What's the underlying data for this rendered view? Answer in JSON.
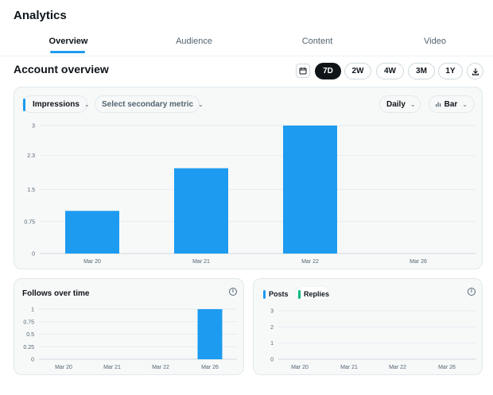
{
  "page": {
    "title": "Analytics"
  },
  "tabs": [
    {
      "label": "Overview",
      "active": true
    },
    {
      "label": "Audience",
      "active": false
    },
    {
      "label": "Content",
      "active": false
    },
    {
      "label": "Video",
      "active": false
    }
  ],
  "overview": {
    "title": "Account overview",
    "calendar_icon": "calendar-icon",
    "ranges": [
      {
        "label": "7D",
        "active": true
      },
      {
        "label": "2W",
        "active": false
      },
      {
        "label": "4W",
        "active": false
      },
      {
        "label": "3M",
        "active": false
      },
      {
        "label": "1Y",
        "active": false
      }
    ],
    "download_icon": "download-icon",
    "accent_color": "#1d9bf0"
  },
  "main_chart": {
    "primary_metric": "Impressions",
    "secondary_metric": "Select secondary metric",
    "interval": "Daily",
    "chart_style": "Bar"
  },
  "follows": {
    "title": "Follows over time"
  },
  "posts": {
    "legend": [
      {
        "name": "Posts",
        "color": "#1d9bf0"
      },
      {
        "name": "Replies",
        "color": "#00ba7c"
      }
    ]
  },
  "chart_data": [
    {
      "type": "bar",
      "categories": [
        "Mar 20",
        "Mar 21",
        "Mar 22",
        "Mar 26"
      ],
      "values": [
        1,
        2,
        3,
        null
      ],
      "yticks": [
        "0",
        "0.75",
        "1.5",
        "2.3",
        "3"
      ],
      "ylim": [
        0,
        3
      ],
      "grid": true,
      "color": "#1d9bf0"
    },
    {
      "type": "bar",
      "title": "Follows over time",
      "categories": [
        "Mar 20",
        "Mar 21",
        "Mar 22",
        "Mar 26"
      ],
      "values": [
        0,
        0,
        0,
        1
      ],
      "yticks": [
        "0",
        "0.25",
        "0.5",
        "0.75",
        "1"
      ],
      "ylim": [
        0,
        1
      ],
      "grid": true,
      "color": "#1d9bf0"
    },
    {
      "type": "bar",
      "categories": [
        "Mar 20",
        "Mar 21",
        "Mar 22",
        "Mar 26"
      ],
      "series": [
        {
          "name": "Posts",
          "values": [
            0,
            0,
            0,
            0
          ]
        },
        {
          "name": "Replies",
          "values": [
            0,
            0,
            0,
            0
          ]
        }
      ],
      "yticks": [
        "0",
        "1",
        "2",
        "3"
      ],
      "ylim": [
        0,
        3
      ],
      "grid": true
    }
  ]
}
